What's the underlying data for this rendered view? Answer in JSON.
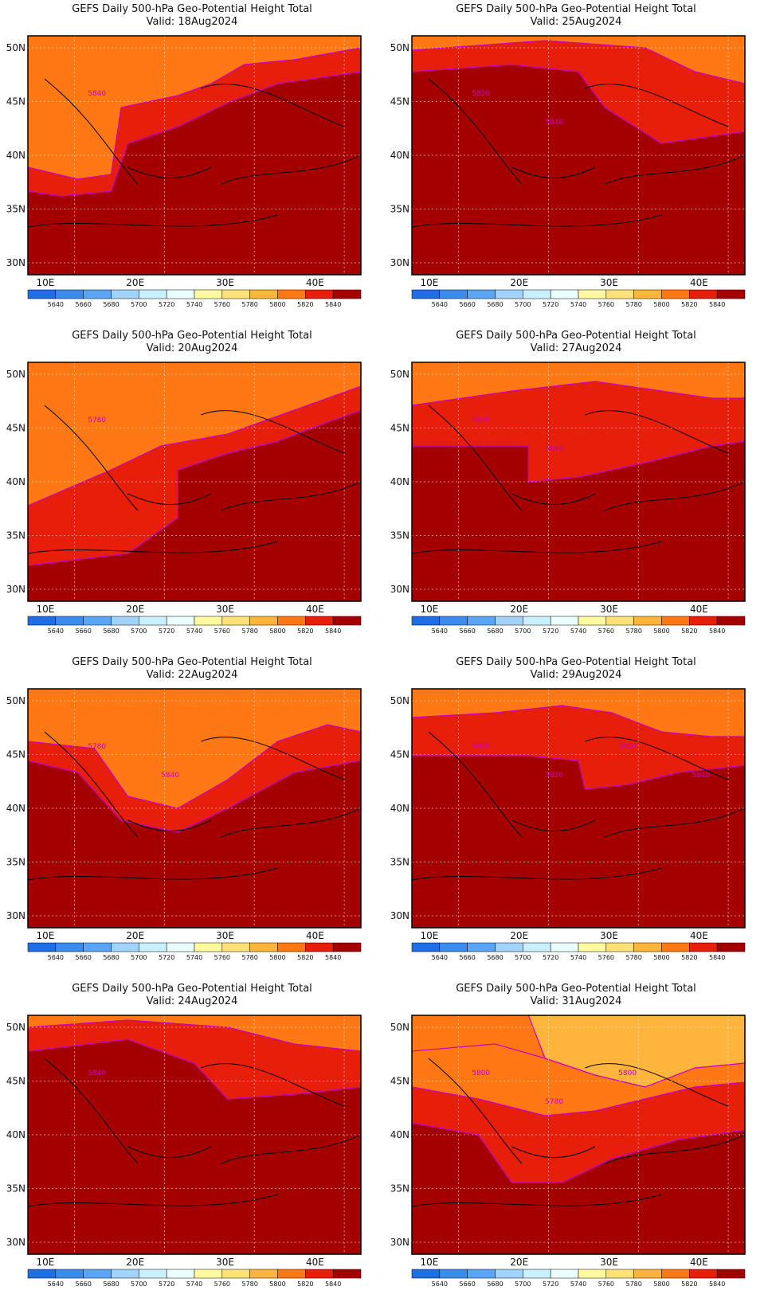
{
  "colorbar": {
    "levels": [
      "5640",
      "5660",
      "5680",
      "5700",
      "5720",
      "5740",
      "5760",
      "5780",
      "5800",
      "5820",
      "5840"
    ],
    "colors": [
      "#1e6ee6",
      "#3c8cf0",
      "#5aa5f5",
      "#a0d2fa",
      "#c8f0ff",
      "#ebffff",
      "#fffaa0",
      "#ffe178",
      "#ffb43c",
      "#ff7814",
      "#e61e0a",
      "#a50000"
    ]
  },
  "axes": {
    "lon_labels": [
      "10E",
      "20E",
      "30E",
      "40E"
    ],
    "lat_labels": [
      "50N",
      "45N",
      "40N",
      "35N",
      "30N"
    ]
  },
  "contour_color": "#c800c8",
  "panels": [
    {
      "title": "GEFS Daily 500-hPa Geo-Potential Height Total",
      "valid": "Valid:  18Aug2024",
      "contour_labels": [
        "5840"
      ],
      "bands": [
        {
          "level": "5840",
          "poly": [
            [
              0,
              0.65
            ],
            [
              0.1,
              0.67
            ],
            [
              0.25,
              0.65
            ],
            [
              0.3,
              0.45
            ],
            [
              0.45,
              0.38
            ],
            [
              0.6,
              0.28
            ],
            [
              0.75,
              0.2
            ],
            [
              1,
              0.15
            ],
            [
              1,
              1
            ],
            [
              0,
              1
            ]
          ]
        },
        {
          "level": "5820",
          "poly": [
            [
              0,
              0.55
            ],
            [
              0.15,
              0.6
            ],
            [
              0.25,
              0.58
            ],
            [
              0.28,
              0.3
            ],
            [
              0.45,
              0.25
            ],
            [
              0.55,
              0.2
            ],
            [
              0.65,
              0.12
            ],
            [
              0.8,
              0.1
            ],
            [
              1,
              0.05
            ],
            [
              1,
              0.15
            ],
            [
              0.75,
              0.2
            ],
            [
              0.6,
              0.28
            ],
            [
              0.45,
              0.38
            ],
            [
              0.3,
              0.45
            ],
            [
              0.25,
              0.65
            ],
            [
              0.1,
              0.67
            ],
            [
              0,
              0.65
            ]
          ]
        }
      ]
    },
    {
      "title": "GEFS Daily 500-hPa Geo-Potential Height Total",
      "valid": "Valid:  25Aug2024",
      "contour_labels": [
        "5820",
        "5840"
      ],
      "bands": [
        {
          "level": "5840",
          "poly": [
            [
              0,
              0.15
            ],
            [
              0.3,
              0.12
            ],
            [
              0.5,
              0.15
            ],
            [
              0.58,
              0.3
            ],
            [
              0.75,
              0.45
            ],
            [
              0.9,
              0.42
            ],
            [
              1,
              0.4
            ],
            [
              1,
              1
            ],
            [
              0,
              1
            ]
          ]
        },
        {
          "level": "5820",
          "poly": [
            [
              0,
              0.06
            ],
            [
              0.4,
              0.02
            ],
            [
              0.7,
              0.05
            ],
            [
              0.85,
              0.15
            ],
            [
              1,
              0.2
            ],
            [
              1,
              0.4
            ],
            [
              0.9,
              0.42
            ],
            [
              0.75,
              0.45
            ],
            [
              0.58,
              0.3
            ],
            [
              0.5,
              0.15
            ],
            [
              0.3,
              0.12
            ],
            [
              0,
              0.15
            ]
          ]
        }
      ]
    },
    {
      "title": "GEFS Daily 500-hPa Geo-Potential Height Total",
      "valid": "Valid:  20Aug2024",
      "contour_labels": [
        "5780"
      ],
      "bands": [
        {
          "level": "5840",
          "poly": [
            [
              0.45,
              0.45
            ],
            [
              0.6,
              0.38
            ],
            [
              0.75,
              0.33
            ],
            [
              0.9,
              0.25
            ],
            [
              1,
              0.2
            ],
            [
              1,
              1
            ],
            [
              0,
              1
            ],
            [
              0,
              0.85
            ],
            [
              0.3,
              0.8
            ],
            [
              0.45,
              0.65
            ]
          ]
        },
        {
          "level": "5820",
          "poly": [
            [
              0,
              0.6
            ],
            [
              0.25,
              0.45
            ],
            [
              0.4,
              0.35
            ],
            [
              0.6,
              0.3
            ],
            [
              0.8,
              0.2
            ],
            [
              1,
              0.1
            ],
            [
              1,
              0.2
            ],
            [
              0.9,
              0.25
            ],
            [
              0.75,
              0.33
            ],
            [
              0.6,
              0.38
            ],
            [
              0.45,
              0.45
            ],
            [
              0.45,
              0.65
            ],
            [
              0.3,
              0.8
            ],
            [
              0,
              0.85
            ]
          ]
        }
      ]
    },
    {
      "title": "GEFS Daily 500-hPa Geo-Potential Height Total",
      "valid": "Valid:  27Aug2024",
      "contour_labels": [
        "5820",
        "5840"
      ],
      "bands": [
        {
          "level": "5840",
          "poly": [
            [
              0,
              0.35
            ],
            [
              0.35,
              0.35
            ],
            [
              0.35,
              0.5
            ],
            [
              0.5,
              0.48
            ],
            [
              0.7,
              0.42
            ],
            [
              0.9,
              0.35
            ],
            [
              1,
              0.33
            ],
            [
              1,
              1
            ],
            [
              0,
              1
            ]
          ]
        },
        {
          "level": "5820",
          "poly": [
            [
              0,
              0.18
            ],
            [
              0.3,
              0.12
            ],
            [
              0.55,
              0.08
            ],
            [
              0.75,
              0.12
            ],
            [
              0.9,
              0.15
            ],
            [
              1,
              0.15
            ],
            [
              1,
              0.33
            ],
            [
              0.9,
              0.35
            ],
            [
              0.7,
              0.42
            ],
            [
              0.5,
              0.48
            ],
            [
              0.35,
              0.5
            ],
            [
              0.35,
              0.35
            ],
            [
              0,
              0.35
            ]
          ]
        }
      ]
    },
    {
      "title": "GEFS Daily 500-hPa Geo-Potential Height Total",
      "valid": "Valid:  22Aug2024",
      "contour_labels": [
        "5780",
        "5840"
      ],
      "bands": [
        {
          "level": "5840",
          "poly": [
            [
              0,
              0.3
            ],
            [
              0.15,
              0.35
            ],
            [
              0.28,
              0.55
            ],
            [
              0.45,
              0.6
            ],
            [
              0.6,
              0.5
            ],
            [
              0.8,
              0.35
            ],
            [
              1,
              0.3
            ],
            [
              1,
              1
            ],
            [
              0,
              1
            ]
          ]
        },
        {
          "level": "5820",
          "poly": [
            [
              0,
              0.22
            ],
            [
              0.2,
              0.25
            ],
            [
              0.3,
              0.45
            ],
            [
              0.45,
              0.5
            ],
            [
              0.6,
              0.38
            ],
            [
              0.75,
              0.22
            ],
            [
              0.9,
              0.15
            ],
            [
              1,
              0.18
            ],
            [
              1,
              0.3
            ],
            [
              0.8,
              0.35
            ],
            [
              0.6,
              0.5
            ],
            [
              0.45,
              0.6
            ],
            [
              0.28,
              0.55
            ],
            [
              0.15,
              0.35
            ],
            [
              0,
              0.3
            ]
          ]
        }
      ]
    },
    {
      "title": "GEFS Daily 500-hPa Geo-Potential Height Total",
      "valid": "Valid:  29Aug2024",
      "contour_labels": [
        "5820",
        "5820",
        "5840",
        "5840"
      ],
      "bands": [
        {
          "level": "5840",
          "poly": [
            [
              0,
              0.28
            ],
            [
              0.35,
              0.28
            ],
            [
              0.5,
              0.3
            ],
            [
              0.52,
              0.42
            ],
            [
              0.65,
              0.4
            ],
            [
              0.8,
              0.35
            ],
            [
              1,
              0.32
            ],
            [
              1,
              1
            ],
            [
              0,
              1
            ]
          ]
        },
        {
          "level": "5820",
          "poly": [
            [
              0,
              0.12
            ],
            [
              0.25,
              0.1
            ],
            [
              0.45,
              0.07
            ],
            [
              0.6,
              0.1
            ],
            [
              0.75,
              0.18
            ],
            [
              0.9,
              0.2
            ],
            [
              1,
              0.2
            ],
            [
              1,
              0.32
            ],
            [
              0.8,
              0.35
            ],
            [
              0.65,
              0.4
            ],
            [
              0.52,
              0.42
            ],
            [
              0.5,
              0.3
            ],
            [
              0.35,
              0.28
            ],
            [
              0,
              0.28
            ]
          ]
        }
      ]
    },
    {
      "title": "GEFS Daily 500-hPa Geo-Potential Height Total",
      "valid": "Valid:  24Aug2024",
      "contour_labels": [
        "5840"
      ],
      "bands": [
        {
          "level": "5840",
          "poly": [
            [
              0,
              0.15
            ],
            [
              0.3,
              0.1
            ],
            [
              0.5,
              0.2
            ],
            [
              0.6,
              0.35
            ],
            [
              0.8,
              0.33
            ],
            [
              1,
              0.3
            ],
            [
              1,
              1
            ],
            [
              0,
              1
            ]
          ]
        },
        {
          "level": "5820",
          "poly": [
            [
              0,
              0.05
            ],
            [
              0.3,
              0.02
            ],
            [
              0.6,
              0.05
            ],
            [
              0.8,
              0.12
            ],
            [
              1,
              0.15
            ],
            [
              1,
              0.3
            ],
            [
              0.8,
              0.33
            ],
            [
              0.6,
              0.35
            ],
            [
              0.5,
              0.2
            ],
            [
              0.3,
              0.1
            ],
            [
              0,
              0.15
            ]
          ]
        }
      ]
    },
    {
      "title": "GEFS Daily 500-hPa Geo-Potential Height Total",
      "valid": "Valid:  31Aug2024",
      "contour_labels": [
        "5800",
        "5780",
        "5800"
      ],
      "bands": [
        {
          "level": "5840",
          "poly": [
            [
              0,
              0.45
            ],
            [
              0.2,
              0.5
            ],
            [
              0.3,
              0.7
            ],
            [
              0.45,
              0.7
            ],
            [
              0.6,
              0.6
            ],
            [
              0.8,
              0.52
            ],
            [
              1,
              0.48
            ],
            [
              1,
              1
            ],
            [
              0,
              1
            ]
          ]
        },
        {
          "level": "5820",
          "poly": [
            [
              0,
              0.3
            ],
            [
              0.2,
              0.35
            ],
            [
              0.4,
              0.42
            ],
            [
              0.55,
              0.4
            ],
            [
              0.7,
              0.35
            ],
            [
              0.85,
              0.3
            ],
            [
              1,
              0.28
            ],
            [
              1,
              0.48
            ],
            [
              0.8,
              0.52
            ],
            [
              0.6,
              0.6
            ],
            [
              0.45,
              0.7
            ],
            [
              0.3,
              0.7
            ],
            [
              0.2,
              0.5
            ],
            [
              0,
              0.45
            ]
          ]
        },
        {
          "level": "5800",
          "poly": [
            [
              0,
              0.15
            ],
            [
              0.25,
              0.12
            ],
            [
              0.4,
              0.18
            ],
            [
              0.55,
              0.25
            ],
            [
              0.7,
              0.3
            ],
            [
              0.85,
              0.22
            ],
            [
              1,
              0.2
            ],
            [
              1,
              0.28
            ],
            [
              0.85,
              0.3
            ],
            [
              0.7,
              0.35
            ],
            [
              0.55,
              0.4
            ],
            [
              0.4,
              0.42
            ],
            [
              0.2,
              0.35
            ],
            [
              0,
              0.3
            ]
          ]
        },
        {
          "level": "5780",
          "poly": [
            [
              0.35,
              0.0
            ],
            [
              0.6,
              0.0
            ],
            [
              1,
              0.0
            ],
            [
              1,
              0.2
            ],
            [
              0.85,
              0.22
            ],
            [
              0.7,
              0.3
            ],
            [
              0.55,
              0.25
            ],
            [
              0.4,
              0.18
            ]
          ]
        }
      ]
    }
  ]
}
